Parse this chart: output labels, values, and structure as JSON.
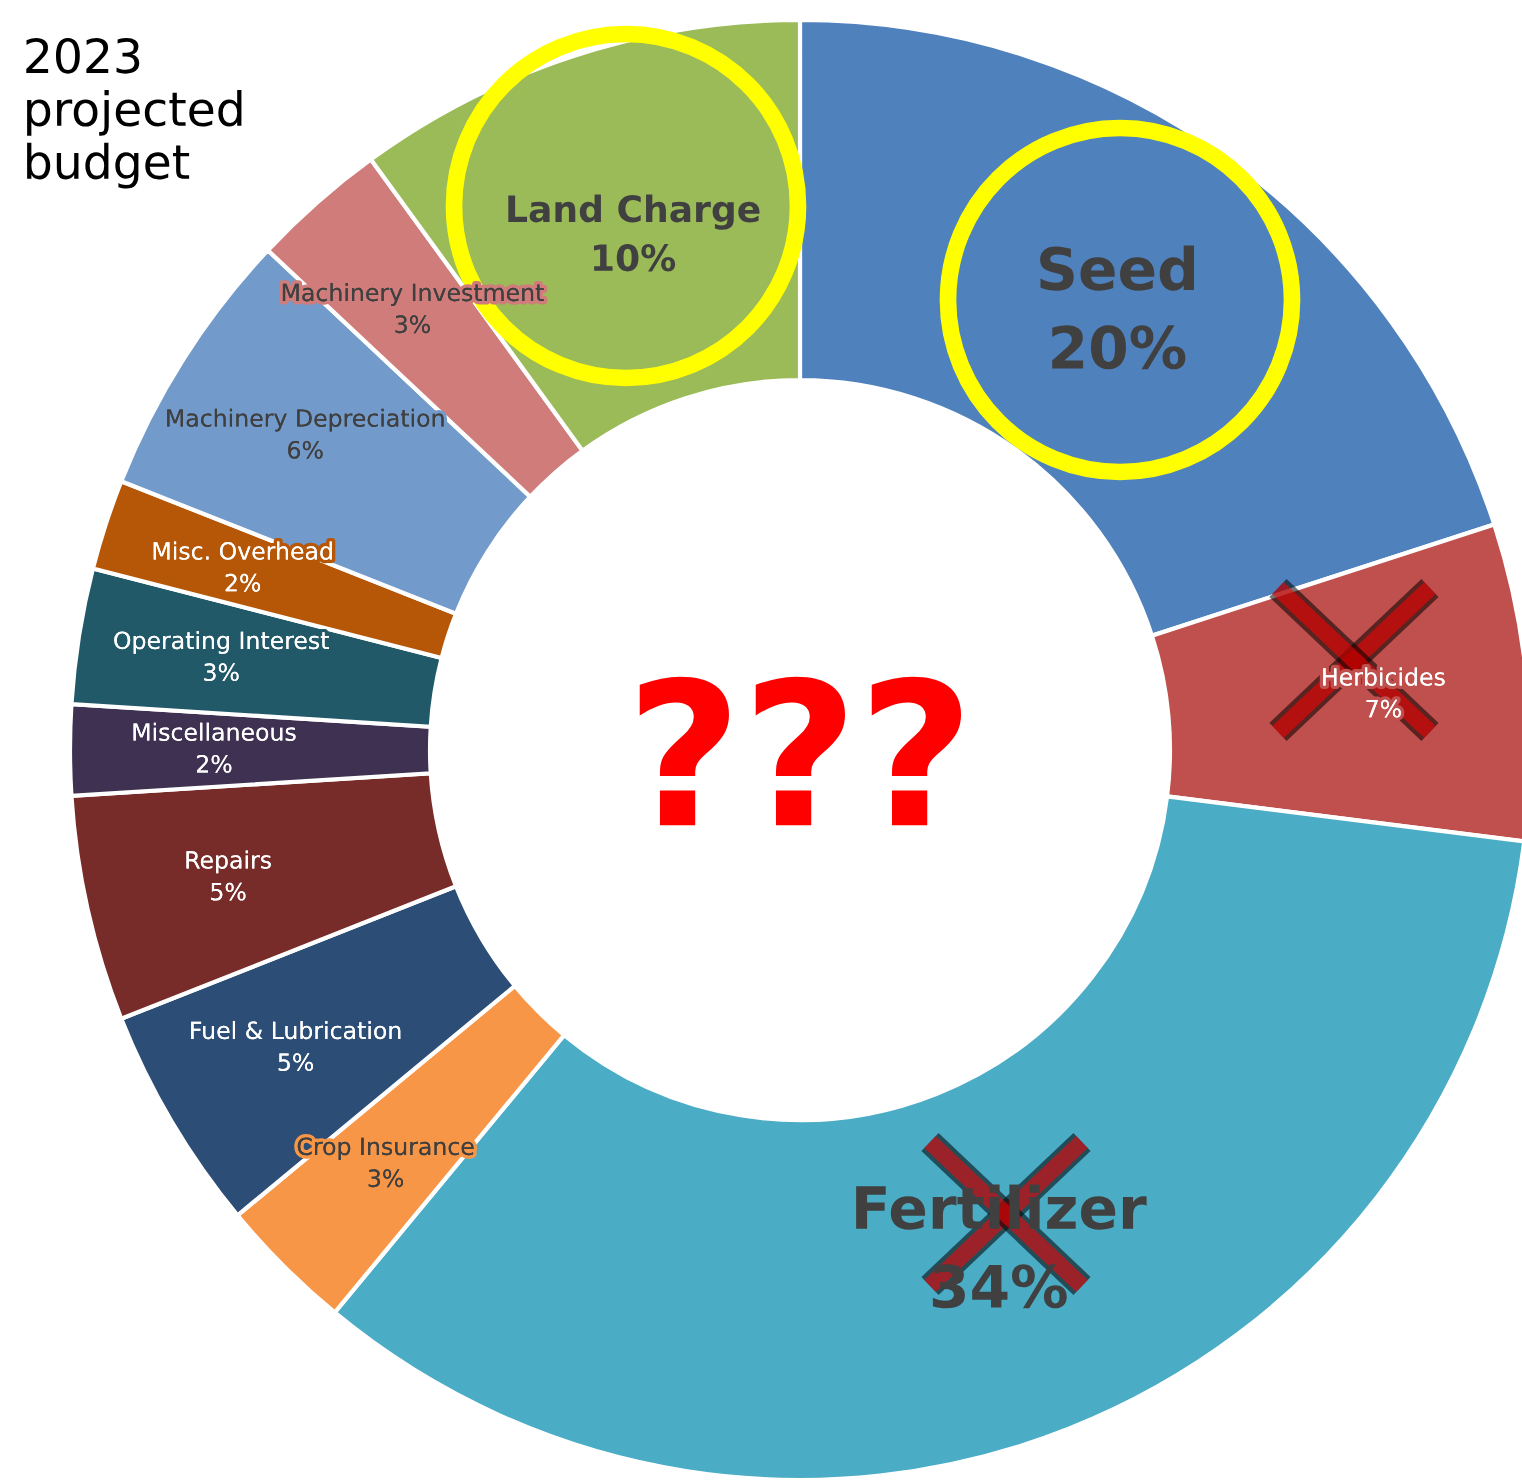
{
  "chart_data": {
    "type": "donut",
    "title": "2023\nprojected\nbudget",
    "categories": [
      "Seed",
      "Herbicides",
      "Fertilizer",
      "Crop Insurance",
      "Fuel & Lubrication",
      "Repairs",
      "Miscellaneous",
      "Operating Interest",
      "Misc. Overhead",
      "Machinery Depreciation",
      "Machinery Investment",
      "Land Charge"
    ],
    "values": [
      20,
      7,
      34,
      3,
      5,
      5,
      2,
      3,
      2,
      6,
      3,
      10
    ],
    "value_labels": [
      "20%",
      "7%",
      "34%",
      "3%",
      "5%",
      "5%",
      "2%",
      "3%",
      "2%",
      "6%",
      "3%",
      "10%"
    ],
    "colors": [
      "#4f81bd",
      "#c0504d",
      "#4bacc6",
      "#f79646",
      "#2c4d75",
      "#772c2a",
      "#3f3151",
      "#215968",
      "#b65708",
      "#729aca",
      "#d07c7a",
      "#9bbb59"
    ],
    "annotations": [
      "???"
    ]
  }
}
